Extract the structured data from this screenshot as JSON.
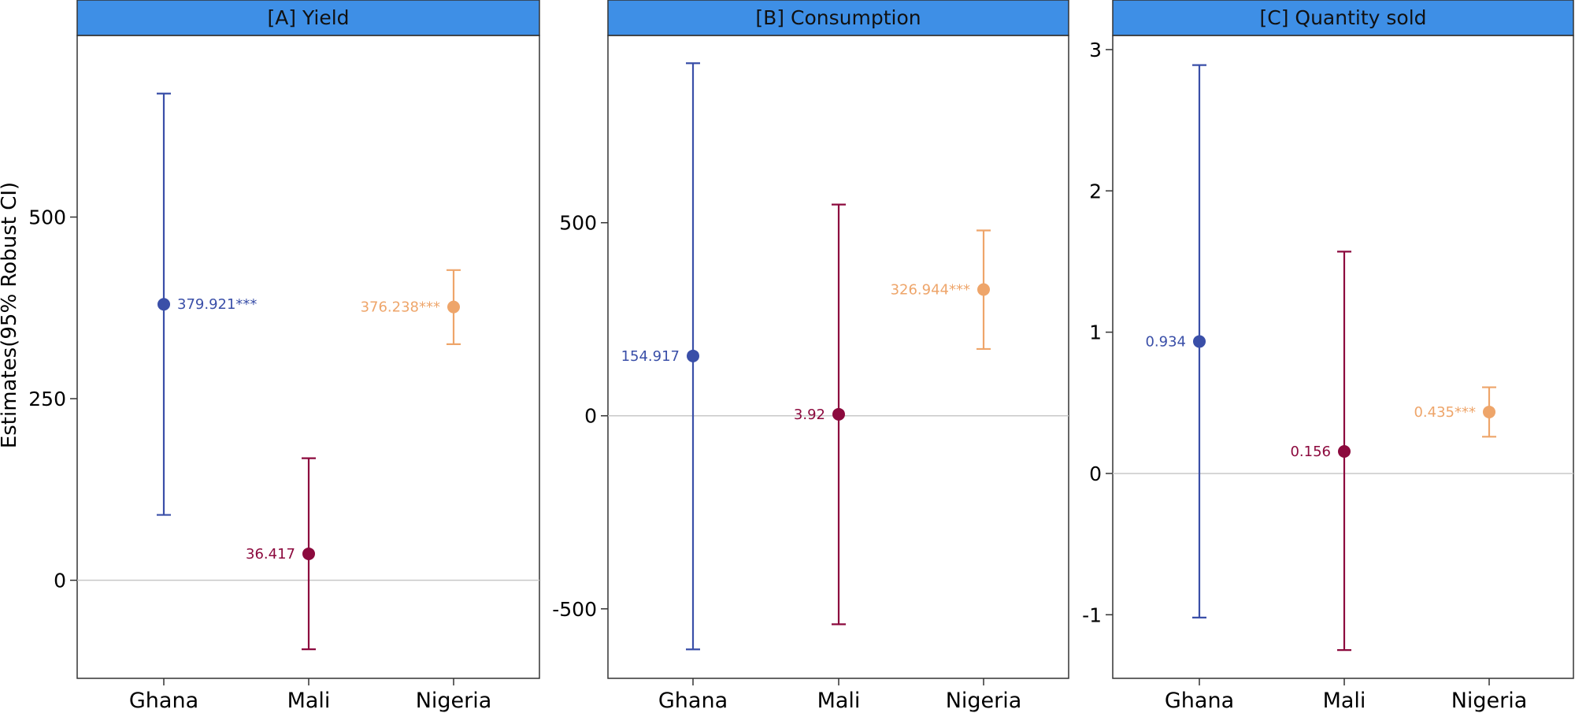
{
  "colors": {
    "ghana": "#3a4fa8",
    "mali": "#8c0a3e",
    "nigeria": "#eea56a",
    "strip": "#3e8fe6",
    "zero_line": "#c8c8c8",
    "frame": "#333333"
  },
  "chart_data": {
    "type": "error-bar",
    "ylabel": "Estimates(95% Robust CI)",
    "categories": [
      "Ghana",
      "Mali",
      "Nigeria"
    ],
    "panels": [
      {
        "title": "[A] Yield",
        "ylim": [
          -135,
          750
        ],
        "yticks": [
          0,
          250,
          500
        ],
        "ytick_labels": [
          "0",
          "250",
          "500"
        ],
        "points": [
          {
            "category": "Ghana",
            "estimate": 379.921,
            "ci_low": 90,
            "ci_high": 670,
            "label": "379.921***",
            "label_side": "right",
            "color_key": "ghana"
          },
          {
            "category": "Mali",
            "estimate": 36.417,
            "ci_low": -95,
            "ci_high": 168,
            "label": "36.417",
            "label_side": "left",
            "color_key": "mali"
          },
          {
            "category": "Nigeria",
            "estimate": 376.238,
            "ci_low": 325,
            "ci_high": 427,
            "label": "376.238***",
            "label_side": "left",
            "color_key": "nigeria"
          }
        ]
      },
      {
        "title": "[B] Consumption",
        "ylim": [
          -680,
          985
        ],
        "yticks": [
          -500,
          0,
          500
        ],
        "ytick_labels": [
          "-500",
          "0",
          "500"
        ],
        "points": [
          {
            "category": "Ghana",
            "estimate": 154.917,
            "ci_low": -605,
            "ci_high": 913,
            "label": "154.917",
            "label_side": "left",
            "color_key": "ghana"
          },
          {
            "category": "Mali",
            "estimate": 3.92,
            "ci_low": -540,
            "ci_high": 547,
            "label": "3.92",
            "label_side": "left",
            "color_key": "mali"
          },
          {
            "category": "Nigeria",
            "estimate": 326.944,
            "ci_low": 173,
            "ci_high": 480,
            "label": "326.944***",
            "label_side": "left",
            "color_key": "nigeria"
          }
        ]
      },
      {
        "title": "[C] Quantity sold",
        "ylim": [
          -1.45,
          3.1
        ],
        "yticks": [
          -1,
          0,
          1,
          2,
          3
        ],
        "ytick_labels": [
          "-1",
          "0",
          "1",
          "2",
          "3"
        ],
        "points": [
          {
            "category": "Ghana",
            "estimate": 0.934,
            "ci_low": -1.02,
            "ci_high": 2.89,
            "label": "0.934",
            "label_side": "left",
            "color_key": "ghana"
          },
          {
            "category": "Mali",
            "estimate": 0.156,
            "ci_low": -1.25,
            "ci_high": 1.57,
            "label": "0.156",
            "label_side": "left",
            "color_key": "mali"
          },
          {
            "category": "Nigeria",
            "estimate": 0.435,
            "ci_low": 0.26,
            "ci_high": 0.61,
            "label": "0.435***",
            "label_side": "left",
            "color_key": "nigeria"
          }
        ]
      }
    ]
  }
}
